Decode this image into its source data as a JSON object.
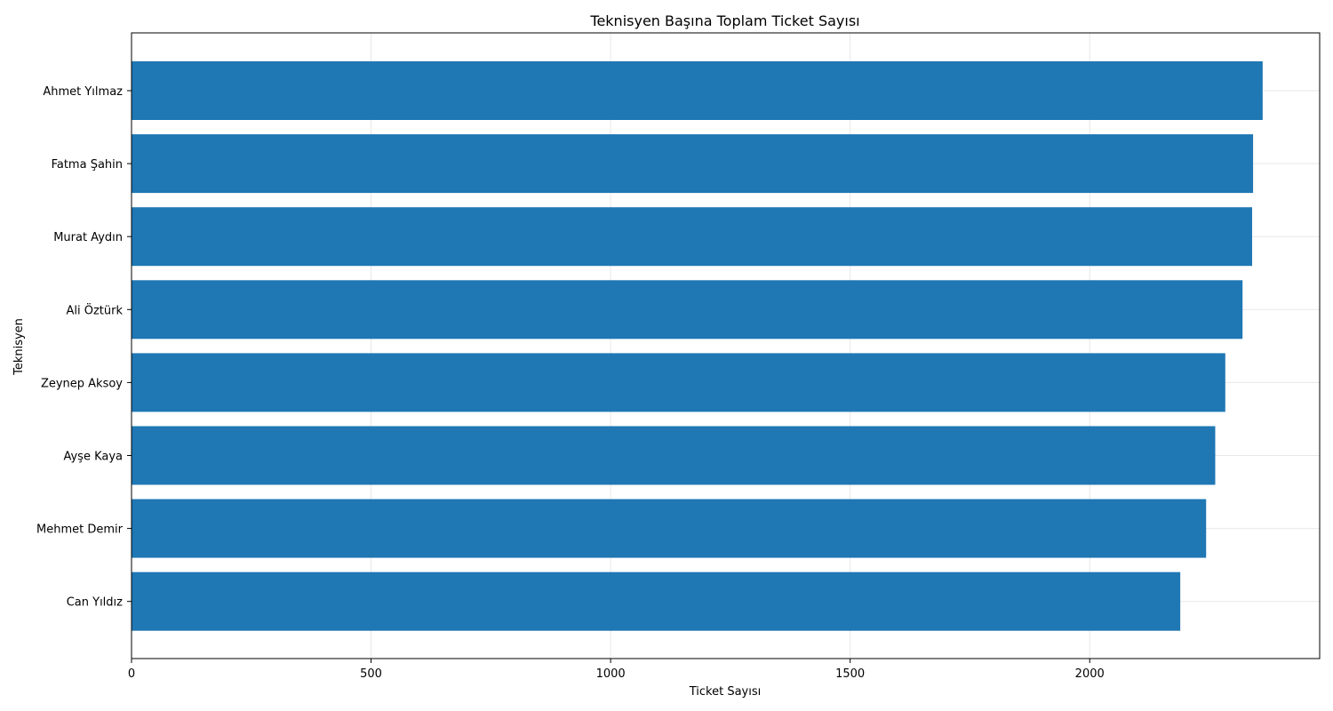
{
  "chart_data": {
    "type": "bar",
    "orientation": "horizontal",
    "title": "Teknisyen Başına Toplam Ticket Sayısı",
    "xlabel": "Ticket Sayısı",
    "ylabel": "Teknisyen",
    "xlim": [
      0,
      2480
    ],
    "x_ticks": [
      0,
      500,
      1000,
      1500,
      2000
    ],
    "grid": true,
    "bar_color": "#1f77b4",
    "categories": [
      "Ahmet Yılmaz",
      "Fatma Şahin",
      "Murat Aydın",
      "Ali Öztürk",
      "Zeynep Aksoy",
      "Ayşe Kaya",
      "Mehmet Demir",
      "Can Yıldız"
    ],
    "values": [
      2361,
      2341,
      2339,
      2319,
      2283,
      2262,
      2243,
      2189
    ]
  }
}
